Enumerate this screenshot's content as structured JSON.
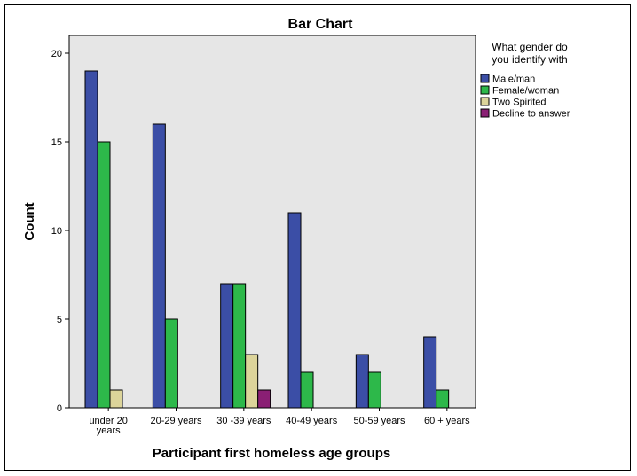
{
  "chart_data": {
    "type": "bar",
    "title": "Bar Chart",
    "xlabel": "Participant first homeless age groups",
    "ylabel": "Count",
    "categories": [
      [
        "under 20",
        "years"
      ],
      [
        "20-29 years"
      ],
      [
        "30 -39 years"
      ],
      [
        "40-49 years"
      ],
      [
        "50-59 years"
      ],
      [
        "60 + years"
      ]
    ],
    "ylim": [
      0,
      21
    ],
    "yticks": [
      0,
      5,
      10,
      15,
      20
    ],
    "grid": false,
    "legend": {
      "title": [
        "What gender do",
        "you identify with"
      ],
      "placement": "right"
    },
    "series": [
      {
        "name": "Male/man",
        "color": "#3b4ea6",
        "values": [
          19,
          16,
          7,
          11,
          3,
          4
        ]
      },
      {
        "name": "Female/woman",
        "color": "#2db84a",
        "values": [
          15,
          5,
          7,
          2,
          2,
          1
        ]
      },
      {
        "name": "Two Spirited",
        "color": "#dcd49a",
        "values": [
          1,
          0,
          3,
          0,
          0,
          0
        ]
      },
      {
        "name": "Decline to answer",
        "color": "#8a1f74",
        "values": [
          0,
          0,
          1,
          0,
          0,
          0
        ]
      }
    ],
    "plot_background": "#e6e6e6"
  }
}
